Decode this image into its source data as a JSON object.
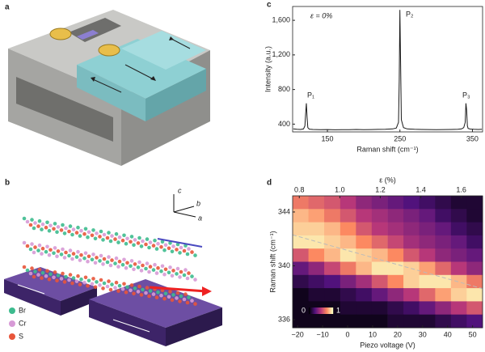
{
  "panel_labels": [
    "a",
    "b",
    "c",
    "d"
  ],
  "panel_b": {
    "axes": [
      "c",
      "b",
      "a"
    ],
    "legend": [
      {
        "name": "Br",
        "color": "#3dbb8e"
      },
      {
        "name": "Cr",
        "color": "#d79ad6"
      },
      {
        "name": "S",
        "color": "#e8553a"
      }
    ]
  },
  "chart_data": [
    {
      "type": "line",
      "title": "ε = 0%",
      "xlabel": "Raman shift (cm⁻¹)",
      "ylabel": "Intensity (a.u.)",
      "x": [
        103,
        108,
        113,
        117,
        119,
        120,
        121,
        122,
        123,
        125,
        130,
        140,
        150,
        160,
        170,
        180,
        190,
        200,
        210,
        220,
        230,
        240,
        245,
        248,
        249,
        250,
        251,
        252,
        255,
        260,
        270,
        280,
        290,
        300,
        310,
        320,
        330,
        335,
        338,
        340,
        341,
        342,
        343,
        344,
        347,
        352,
        358,
        363
      ],
      "values": [
        345,
        340,
        338,
        345,
        380,
        520,
        640,
        480,
        360,
        342,
        338,
        335,
        337,
        334,
        336,
        335,
        338,
        336,
        337,
        339,
        340,
        345,
        355,
        420,
        900,
        1720,
        1100,
        450,
        360,
        345,
        340,
        338,
        337,
        336,
        337,
        338,
        340,
        345,
        360,
        420,
        640,
        560,
        380,
        350,
        343,
        340,
        338,
        340
      ],
      "color": "#1a1a1a",
      "xlim": [
        102,
        364
      ],
      "xticks": [
        150,
        250,
        350
      ],
      "ylim": [
        310,
        1760
      ],
      "yticks": [
        400,
        800,
        {
          "value": 1200,
          "label": "1,200"
        },
        {
          "value": 1600,
          "label": "1,600"
        }
      ],
      "annotations": [
        "P₁",
        "P₂",
        "P₃"
      ]
    },
    {
      "type": "heatmap",
      "xlabel": "Piezo voltage (V)",
      "ylabel": "Raman shift (cm⁻¹)",
      "x2label": "ε (%)",
      "x": [
        -18.8,
        -12.5,
        -6.2,
        0.2,
        6.5,
        12.8,
        19.2,
        25.5,
        31.8,
        38.2,
        44.5,
        50.8
      ],
      "y": [
        344.71,
        343.73,
        342.75,
        341.77,
        340.79,
        339.81,
        338.83,
        337.85,
        336.87,
        335.89
      ],
      "values": [
        [
          0.7,
          0.65,
          0.6,
          0.5,
          0.4,
          0.35,
          0.3,
          0.25,
          0.2,
          0.15,
          0.1,
          0.1
        ],
        [
          0.85,
          0.8,
          0.7,
          0.6,
          0.5,
          0.45,
          0.4,
          0.35,
          0.3,
          0.2,
          0.15,
          0.1
        ],
        [
          0.9,
          0.9,
          0.85,
          0.75,
          0.6,
          0.5,
          0.45,
          0.4,
          0.35,
          0.3,
          0.2,
          0.15
        ],
        [
          0.95,
          0.95,
          0.9,
          0.85,
          0.75,
          0.65,
          0.55,
          0.45,
          0.4,
          0.35,
          0.3,
          0.2
        ],
        [
          0.6,
          0.75,
          0.85,
          0.95,
          0.9,
          0.85,
          0.75,
          0.6,
          0.5,
          0.4,
          0.35,
          0.3
        ],
        [
          0.3,
          0.4,
          0.55,
          0.7,
          0.85,
          0.95,
          0.95,
          0.9,
          0.8,
          0.65,
          0.5,
          0.4
        ],
        [
          0.15,
          0.2,
          0.25,
          0.35,
          0.45,
          0.6,
          0.75,
          0.9,
          0.95,
          0.95,
          0.85,
          0.7
        ],
        [
          0.05,
          0.1,
          0.1,
          0.15,
          0.2,
          0.3,
          0.4,
          0.5,
          0.65,
          0.8,
          0.9,
          0.95
        ],
        [
          0.05,
          0.05,
          0.05,
          0.1,
          0.1,
          0.1,
          0.15,
          0.2,
          0.3,
          0.4,
          0.5,
          0.6
        ],
        [
          0.05,
          0.05,
          0.05,
          0.05,
          0.05,
          0.05,
          0.1,
          0.1,
          0.1,
          0.15,
          0.2,
          0.25
        ]
      ],
      "xlim": [
        -22,
        54
      ],
      "xticks": [
        {
          "value": -20,
          "label": "−20"
        },
        {
          "value": -10,
          "label": "−10"
        },
        0,
        10,
        20,
        30,
        40,
        50
      ],
      "ylim": [
        335.4,
        345.2
      ],
      "yticks": [
        336,
        340,
        344
      ],
      "x2lim": [
        0.767,
        1.705
      ],
      "x2ticks": [
        0.8,
        {
          "value": 1.0,
          "label": "1.0"
        },
        1.2,
        1.4,
        1.6
      ],
      "colormap": [
        "#000004",
        "#51127c",
        "#b73779",
        "#fc8961",
        "#fcfdbf"
      ],
      "colorbar": [
        0,
        1
      ],
      "fit_line": {
        "x": [
          -22,
          54
        ],
        "y": [
          342.3,
          338.3
        ]
      }
    }
  ]
}
